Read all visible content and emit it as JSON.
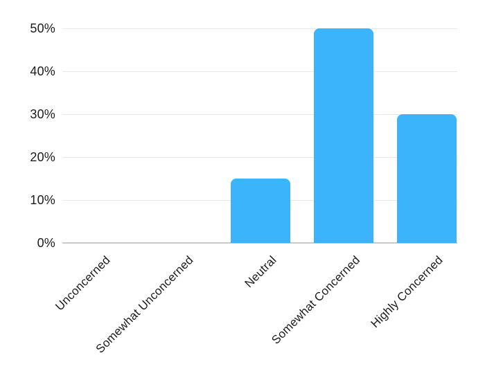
{
  "chart_data": {
    "type": "bar",
    "title": "",
    "xlabel": "",
    "ylabel": "",
    "categories": [
      "Unconcerned",
      "Somewhat Unconcerned",
      "Neutral",
      "Somewhat Concerned",
      "Highly Concerned"
    ],
    "values": [
      0,
      0,
      15,
      50,
      30
    ],
    "value_unit": "%",
    "ylim": [
      0,
      50
    ],
    "ytick_step": 10,
    "ytick_labels": [
      "0%",
      "10%",
      "20%",
      "30%",
      "40%",
      "50%"
    ],
    "grid": true,
    "legend": false,
    "colors": {
      "bar": "#3BB4FC",
      "gridline": "#E8E8E8",
      "zero_axis_line": "#C9C9C9",
      "text": "#1C1C1C",
      "background": "#FFFFFF"
    }
  }
}
